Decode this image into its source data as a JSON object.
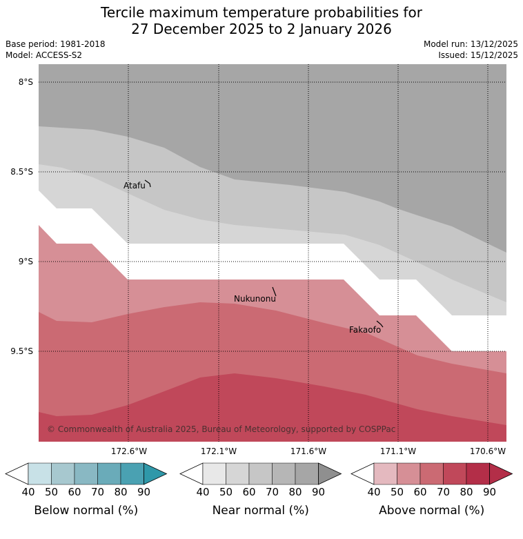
{
  "title": {
    "line1": "Tercile maximum temperature probabilities for",
    "line2": "27 December 2025 to 2 January 2026"
  },
  "meta": {
    "base_period": "Base period: 1981-2018",
    "model": "Model: ACCESS-S2",
    "model_run": "Model run: 13/12/2025",
    "issued": "Issued: 15/12/2025"
  },
  "map": {
    "lat_labels": [
      "8°S",
      "8.5°S",
      "9°S",
      "9.5°S"
    ],
    "lon_labels": [
      "172.6°W",
      "172.1°W",
      "171.6°W",
      "171.1°W",
      "170.6°W"
    ],
    "places": [
      "Atafu",
      "Nukunonu",
      "Fakaofo"
    ],
    "copyright": "© Commonwealth of Australia 2025, Bureau of Meteorology, supported by COSPPac"
  },
  "colorbars": [
    {
      "label": "Below normal (%)",
      "ticks": [
        "40",
        "50",
        "60",
        "70",
        "80",
        "90"
      ],
      "colors": [
        "#ffffff",
        "#c8e1e7",
        "#a7c8cf",
        "#89b8c3",
        "#6aabb9",
        "#4aa1b2",
        "#2f98a9"
      ]
    },
    {
      "label": "Near normal (%)",
      "ticks": [
        "40",
        "50",
        "60",
        "70",
        "80",
        "90"
      ],
      "colors": [
        "#ffffff",
        "#e8e8e8",
        "#d6d6d6",
        "#c6c6c6",
        "#b6b6b6",
        "#a6a6a6",
        "#8f8f8f"
      ]
    },
    {
      "label": "Above normal (%)",
      "ticks": [
        "40",
        "50",
        "60",
        "70",
        "80",
        "90"
      ],
      "colors": [
        "#ffffff",
        "#e4b9bf",
        "#d68f96",
        "#cb6a73",
        "#c0485a",
        "#b32e48",
        "#b32e48"
      ]
    }
  ]
}
